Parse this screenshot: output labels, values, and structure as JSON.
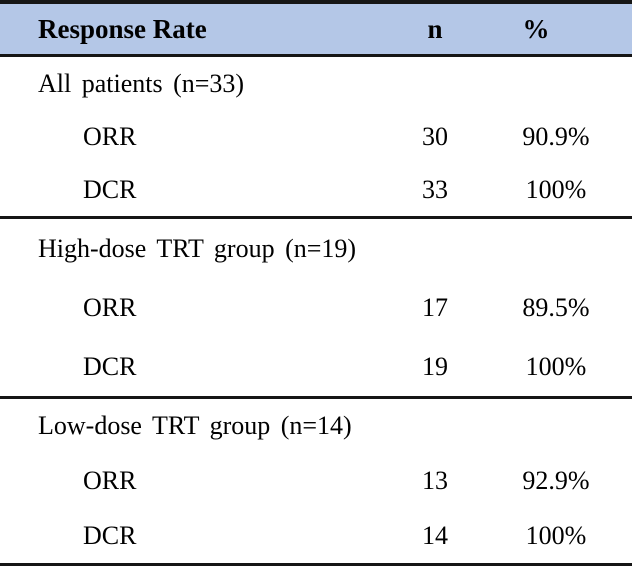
{
  "table": {
    "title": "Response Rate",
    "header": {
      "response_rate": "Response Rate",
      "n": "n",
      "pct": "%"
    },
    "sections": [
      {
        "group": "All patients (n=33)",
        "rows": [
          {
            "label": "ORR",
            "n": "30",
            "pct": "90.9%"
          },
          {
            "label": "DCR",
            "n": "33",
            "pct": "100%"
          }
        ]
      },
      {
        "group": "High-dose TRT group (n=19)",
        "rows": [
          {
            "label": "ORR",
            "n": "17",
            "pct": "89.5%"
          },
          {
            "label": "DCR",
            "n": "19",
            "pct": "100%"
          }
        ]
      },
      {
        "group": "Low-dose TRT group (n=14)",
        "rows": [
          {
            "label": "ORR",
            "n": "13",
            "pct": "92.9%"
          },
          {
            "label": "DCR",
            "n": "14",
            "pct": "100%"
          }
        ]
      }
    ],
    "colors": {
      "header_bg": "#b4c7e7",
      "border": "#161616",
      "text": "#000000"
    }
  },
  "chart_data": {
    "type": "table",
    "columns": [
      "Response Rate",
      "n",
      "%"
    ],
    "rows": [
      [
        "All patients (n=33)",
        "",
        ""
      ],
      [
        "ORR",
        "30",
        "90.9%"
      ],
      [
        "DCR",
        "33",
        "100%"
      ],
      [
        "High-dose TRT group (n=19)",
        "",
        ""
      ],
      [
        "ORR",
        "17",
        "89.5%"
      ],
      [
        "DCR",
        "19",
        "100%"
      ],
      [
        "Low-dose TRT group (n=14)",
        "",
        ""
      ],
      [
        "ORR",
        "13",
        "92.9%"
      ],
      [
        "DCR",
        "14",
        "100%"
      ]
    ]
  }
}
